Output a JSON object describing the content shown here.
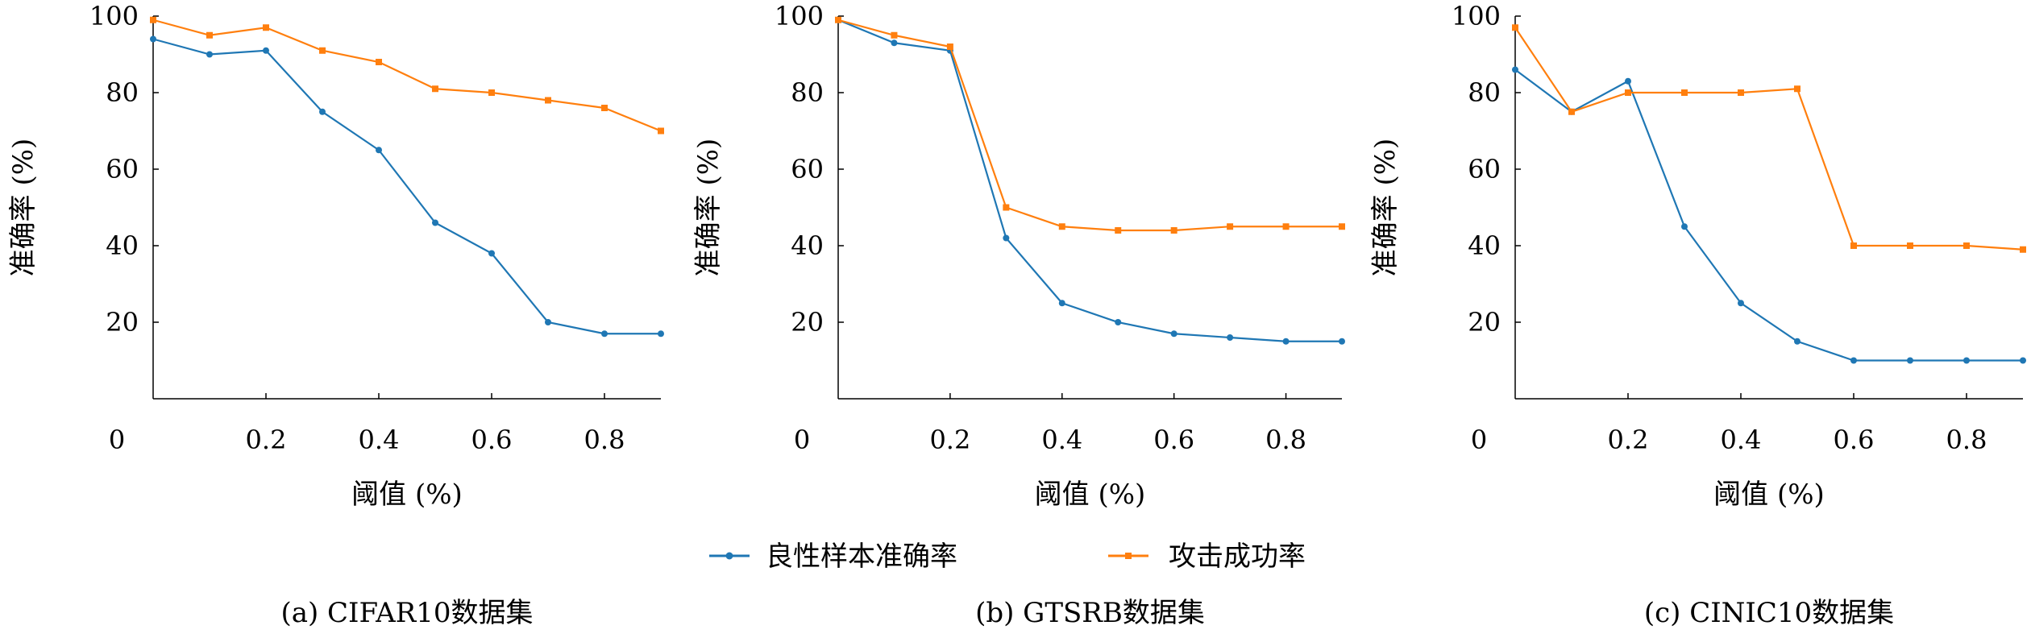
{
  "legend": {
    "benign_label": "良性样本准确率",
    "attack_label": "攻击成功率",
    "benign_color": "#1f77b4",
    "attack_color": "#ff7f0e"
  },
  "chart_data": [
    {
      "type": "line",
      "caption": "(a) CIFAR10数据集",
      "xlabel": "阈值 (%)",
      "ylabel": "准确率 (%)",
      "xlim": [
        0,
        0.9
      ],
      "ylim": [
        0,
        100
      ],
      "xticks": [
        "0",
        "0.2",
        "0.4",
        "0.6",
        "0.8"
      ],
      "yticks": [
        "20",
        "40",
        "60",
        "80",
        "100"
      ],
      "x": [
        0,
        0.1,
        0.2,
        0.3,
        0.4,
        0.5,
        0.6,
        0.7,
        0.8,
        0.9
      ],
      "series": [
        {
          "name": "良性样本准确率",
          "color": "#1f77b4",
          "values": [
            94,
            90,
            91,
            75,
            65,
            46,
            38,
            20,
            17,
            17
          ]
        },
        {
          "name": "攻击成功率",
          "color": "#ff7f0e",
          "values": [
            99,
            95,
            97,
            91,
            88,
            81,
            80,
            78,
            76,
            70
          ]
        }
      ]
    },
    {
      "type": "line",
      "caption": "(b) GTSRB数据集",
      "xlabel": "阈值 (%)",
      "ylabel": "准确率 (%)",
      "xlim": [
        0,
        0.9
      ],
      "ylim": [
        0,
        100
      ],
      "xticks": [
        "0",
        "0.2",
        "0.4",
        "0.6",
        "0.8"
      ],
      "yticks": [
        "20",
        "40",
        "60",
        "80",
        "100"
      ],
      "x": [
        0,
        0.1,
        0.2,
        0.3,
        0.4,
        0.5,
        0.6,
        0.7,
        0.8,
        0.9
      ],
      "series": [
        {
          "name": "良性样本准确率",
          "color": "#1f77b4",
          "values": [
            99,
            93,
            91,
            42,
            25,
            20,
            17,
            16,
            15,
            15
          ]
        },
        {
          "name": "攻击成功率",
          "color": "#ff7f0e",
          "values": [
            99,
            95,
            92,
            50,
            45,
            44,
            44,
            45,
            45,
            45
          ]
        }
      ]
    },
    {
      "type": "line",
      "caption": "(c) CINIC10数据集",
      "xlabel": "阈值 (%)",
      "ylabel": "准确率 (%)",
      "xlim": [
        0,
        0.9
      ],
      "ylim": [
        0,
        100
      ],
      "xticks": [
        "0",
        "0.2",
        "0.4",
        "0.6",
        "0.8"
      ],
      "yticks": [
        "20",
        "40",
        "60",
        "80",
        "100"
      ],
      "x": [
        0,
        0.1,
        0.2,
        0.3,
        0.4,
        0.5,
        0.6,
        0.7,
        0.8,
        0.9
      ],
      "series": [
        {
          "name": "良性样本准确率",
          "color": "#1f77b4",
          "values": [
            86,
            75,
            83,
            45,
            25,
            15,
            10,
            10,
            10,
            10
          ]
        },
        {
          "name": "攻击成功率",
          "color": "#ff7f0e",
          "values": [
            97,
            75,
            80,
            80,
            80,
            81,
            40,
            40,
            40,
            39
          ]
        }
      ]
    }
  ]
}
